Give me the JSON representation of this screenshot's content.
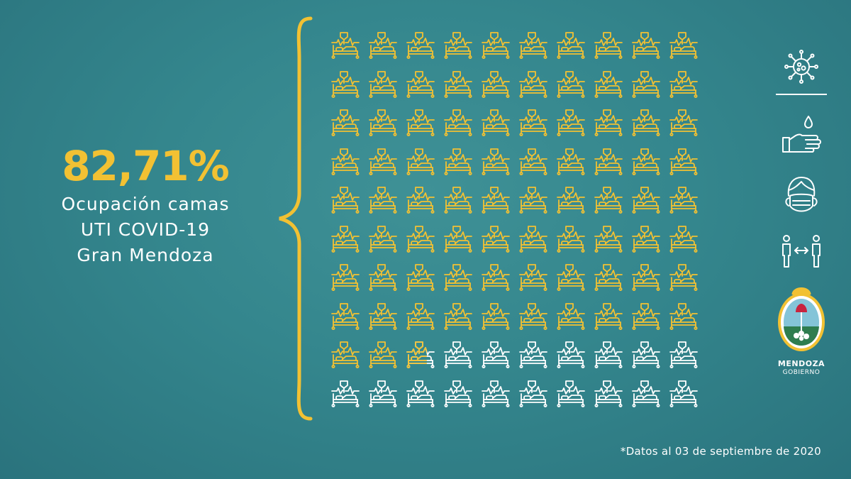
{
  "stat": {
    "value": "82,71%",
    "lines": [
      "Ocupación camas",
      "UTI COVID-19",
      "Gran Mendoza"
    ]
  },
  "beds": {
    "total": 100,
    "occupied_fraction": 0.8271,
    "columns": 10
  },
  "icons": [
    "virus-icon",
    "hand-washing-icon",
    "face-mask-icon",
    "social-distance-icon"
  ],
  "logo": {
    "name": "MENDOZA",
    "subtitle": "GOBIERNO"
  },
  "footnote": "*Datos al 03 de septiembre de 2020",
  "colors": {
    "accent": "#f2c133",
    "background": "#34868d",
    "empty": "#ffffff"
  }
}
